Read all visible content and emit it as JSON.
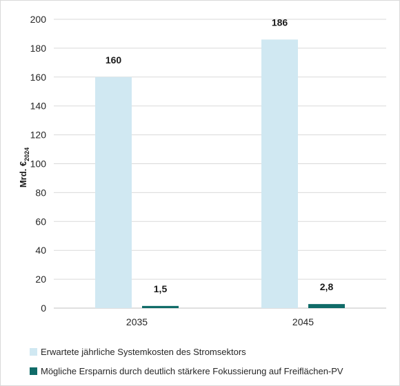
{
  "chart_data": {
    "type": "bar",
    "title": "",
    "xlabel": "",
    "ylabel": "Mrd. €",
    "ylabel_subscript": "2024",
    "ylim": [
      0,
      200
    ],
    "yticks": [
      "0",
      "20",
      "40",
      "60",
      "80",
      "100",
      "120",
      "140",
      "160",
      "180",
      "200"
    ],
    "categories": [
      "2035",
      "2045"
    ],
    "grid": true,
    "legend_position": "bottom",
    "series": [
      {
        "name": "Erwartete jährliche Systemkosten des Stromsektors",
        "color": "#d0e8f2",
        "values": [
          160,
          186
        ],
        "labels": [
          "160",
          "186"
        ]
      },
      {
        "name": "Mögliche Ersparnis durch deutlich stärkere Fokussierung auf Freiflächen-PV",
        "color": "#0f6b68",
        "values": [
          1.5,
          2.8
        ],
        "labels": [
          "1,5",
          "2,8"
        ]
      }
    ]
  }
}
